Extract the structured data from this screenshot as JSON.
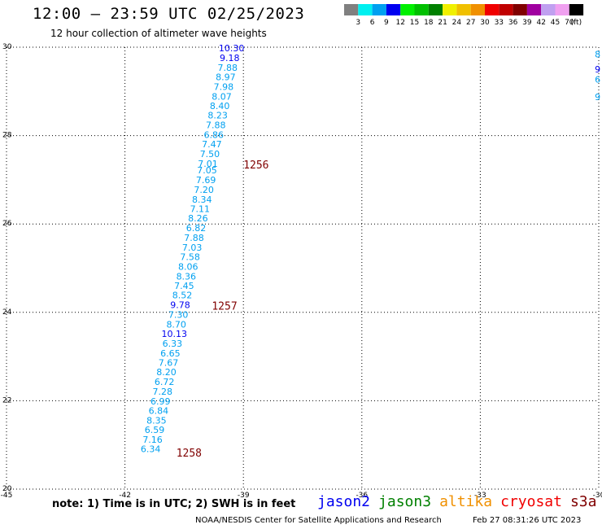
{
  "header": {
    "title": "12:00 – 23:59 UTC 02/25/2023",
    "subtitle": "12 hour collection of altimeter wave heights"
  },
  "legend": {
    "unit": "(ft)",
    "bins": [
      {
        "label": "3",
        "color": "#808080"
      },
      {
        "label": "6",
        "color": "#00f0f0"
      },
      {
        "label": "9",
        "color": "#00a0f0"
      },
      {
        "label": "12",
        "color": "#0000f0"
      },
      {
        "label": "15",
        "color": "#00f000"
      },
      {
        "label": "18",
        "color": "#00c000"
      },
      {
        "label": "21",
        "color": "#008000"
      },
      {
        "label": "24",
        "color": "#f0f000"
      },
      {
        "label": "27",
        "color": "#f0c000"
      },
      {
        "label": "30",
        "color": "#f09000"
      },
      {
        "label": "33",
        "color": "#f00000"
      },
      {
        "label": "36",
        "color": "#c00000"
      },
      {
        "label": "39",
        "color": "#800000"
      },
      {
        "label": "42",
        "color": "#a000a0"
      },
      {
        "label": "45",
        "color": "#c0a0f0"
      },
      {
        "label": "70",
        "color": "#f0a0f0"
      },
      {
        "label": "",
        "color": "#000000"
      }
    ]
  },
  "chart_data": {
    "type": "scatter",
    "title": "12:00 – 23:59 UTC 02/25/2023",
    "subtitle": "12 hour collection of altimeter wave heights",
    "xlim": [
      -45,
      -30
    ],
    "ylim": [
      20,
      30
    ],
    "x_ticks": [
      "-45",
      "-42",
      "-39",
      "-36",
      "-33",
      "-30"
    ],
    "y_ticks": [
      "20",
      "22",
      "24",
      "26",
      "28",
      "30"
    ],
    "grid": true,
    "colors": {
      "light": "#00a0f0",
      "dark": "#0000f0",
      "time": "#800000"
    },
    "series": [
      {
        "points": [
          {
            "lon": -39.3,
            "lat": 29.98,
            "value": "10.30",
            "shade": "dark"
          },
          {
            "lon": -39.35,
            "lat": 29.76,
            "value": "9.18",
            "shade": "dark"
          },
          {
            "lon": -39.4,
            "lat": 29.54,
            "value": "7.88",
            "shade": "light"
          },
          {
            "lon": -39.45,
            "lat": 29.33,
            "value": "8.97",
            "shade": "light"
          },
          {
            "lon": -39.5,
            "lat": 29.11,
            "value": "7.98",
            "shade": "light"
          },
          {
            "lon": -39.55,
            "lat": 28.89,
            "value": "8.07",
            "shade": "light"
          },
          {
            "lon": -39.6,
            "lat": 28.67,
            "value": "8.40",
            "shade": "light"
          },
          {
            "lon": -39.65,
            "lat": 28.46,
            "value": "8.23",
            "shade": "light"
          },
          {
            "lon": -39.7,
            "lat": 28.24,
            "value": "7.88",
            "shade": "light"
          },
          {
            "lon": -39.75,
            "lat": 28.02,
            "value": "6.86",
            "shade": "light"
          },
          {
            "lon": -39.8,
            "lat": 27.81,
            "value": "7.47",
            "shade": "light"
          },
          {
            "lon": -39.85,
            "lat": 27.59,
            "value": "7.50",
            "shade": "light"
          },
          {
            "lon": -39.9,
            "lat": 27.37,
            "value": "7.01",
            "shade": "light"
          },
          {
            "lon": -39.92,
            "lat": 27.22,
            "value": "7.05",
            "shade": "light"
          },
          {
            "lon": -39.95,
            "lat": 27.0,
            "value": "7.69",
            "shade": "light"
          },
          {
            "lon": -40.0,
            "lat": 26.78,
            "value": "7.20",
            "shade": "light"
          },
          {
            "lon": -40.05,
            "lat": 26.56,
            "value": "8.34",
            "shade": "light"
          },
          {
            "lon": -40.1,
            "lat": 26.34,
            "value": "7.11",
            "shade": "light"
          },
          {
            "lon": -40.15,
            "lat": 26.13,
            "value": "8.26",
            "shade": "light"
          },
          {
            "lon": -40.2,
            "lat": 25.91,
            "value": "6.82",
            "shade": "light"
          },
          {
            "lon": -40.25,
            "lat": 25.69,
            "value": "7.88",
            "shade": "light"
          },
          {
            "lon": -40.3,
            "lat": 25.47,
            "value": "7.03",
            "shade": "light"
          },
          {
            "lon": -40.35,
            "lat": 25.26,
            "value": "7.58",
            "shade": "light"
          },
          {
            "lon": -40.4,
            "lat": 25.04,
            "value": "8.06",
            "shade": "light"
          },
          {
            "lon": -40.45,
            "lat": 24.82,
            "value": "8.36",
            "shade": "light"
          },
          {
            "lon": -40.5,
            "lat": 24.6,
            "value": "7.45",
            "shade": "light"
          },
          {
            "lon": -40.55,
            "lat": 24.39,
            "value": "8.52",
            "shade": "light"
          },
          {
            "lon": -40.6,
            "lat": 24.17,
            "value": "9.78",
            "shade": "dark"
          },
          {
            "lon": -40.65,
            "lat": 23.95,
            "value": "7.30",
            "shade": "light"
          },
          {
            "lon": -40.7,
            "lat": 23.73,
            "value": "8.70",
            "shade": "light"
          },
          {
            "lon": -40.75,
            "lat": 23.52,
            "value": "10.13",
            "shade": "dark"
          },
          {
            "lon": -40.8,
            "lat": 23.3,
            "value": "6.33",
            "shade": "light"
          },
          {
            "lon": -40.85,
            "lat": 23.08,
            "value": "6.65",
            "shade": "light"
          },
          {
            "lon": -40.9,
            "lat": 22.86,
            "value": "7.67",
            "shade": "light"
          },
          {
            "lon": -40.95,
            "lat": 22.65,
            "value": "8.20",
            "shade": "light"
          },
          {
            "lon": -41.0,
            "lat": 22.43,
            "value": "6.72",
            "shade": "light"
          },
          {
            "lon": -41.05,
            "lat": 22.21,
            "value": "7.28",
            "shade": "light"
          },
          {
            "lon": -41.1,
            "lat": 21.99,
            "value": "6.99",
            "shade": "light"
          },
          {
            "lon": -41.15,
            "lat": 21.78,
            "value": "6.84",
            "shade": "light"
          },
          {
            "lon": -41.2,
            "lat": 21.56,
            "value": "8.35",
            "shade": "light"
          },
          {
            "lon": -41.25,
            "lat": 21.34,
            "value": "6.59",
            "shade": "light"
          },
          {
            "lon": -41.3,
            "lat": 21.12,
            "value": "7.16",
            "shade": "light"
          },
          {
            "lon": -41.35,
            "lat": 20.91,
            "value": "6.34",
            "shade": "light"
          }
        ]
      }
    ],
    "time_labels": [
      {
        "lon": -39.0,
        "lat": 27.35,
        "text": "1256"
      },
      {
        "lon": -39.8,
        "lat": 24.15,
        "text": "1257"
      },
      {
        "lon": -40.7,
        "lat": 20.83,
        "text": "1258"
      }
    ],
    "partial_edge_labels": [
      {
        "lon": -30.1,
        "lat": 29.84,
        "value": "8",
        "shade": "light"
      },
      {
        "lon": -30.1,
        "lat": 29.5,
        "value": "9",
        "shade": "dark"
      },
      {
        "lon": -30.1,
        "lat": 29.27,
        "value": "6",
        "shade": "light"
      },
      {
        "lon": -30.1,
        "lat": 28.88,
        "value": "9",
        "shade": "light"
      }
    ]
  },
  "footer": {
    "note": "note:  1) Time is in UTC;  2) SWH is in feet",
    "satellites": [
      {
        "name": "jason2",
        "color": "#0000f0"
      },
      {
        "name": "jason3",
        "color": "#008000"
      },
      {
        "name": "altika",
        "color": "#f09000"
      },
      {
        "name": "cryosat",
        "color": "#f00000"
      },
      {
        "name": "s3a",
        "color": "#800000"
      }
    ],
    "credit": "NOAA/NESDIS Center for Satellite Applications and Research",
    "timestamp": "Feb 27 08:31:26 UTC 2023"
  }
}
